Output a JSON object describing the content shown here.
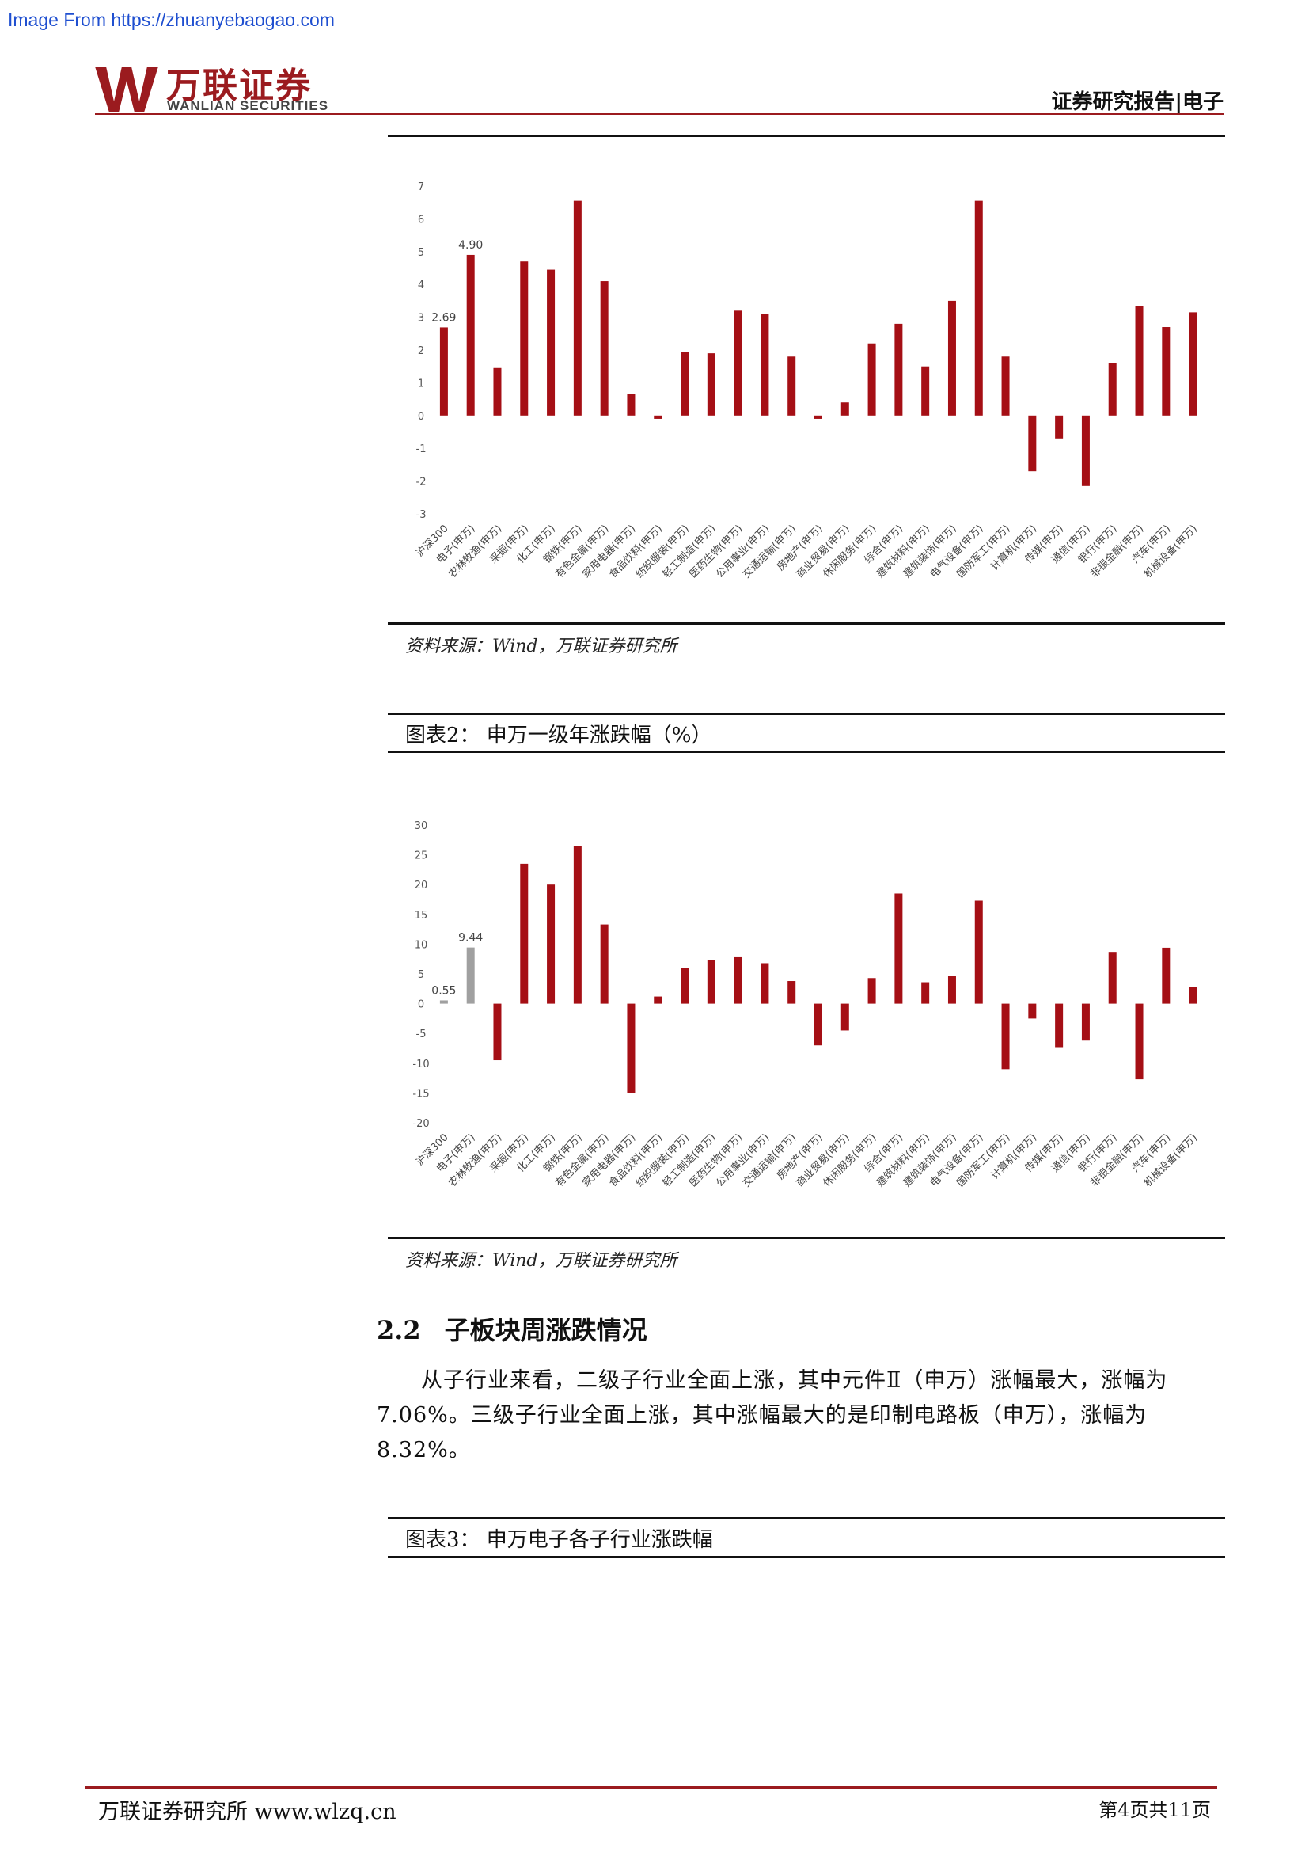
{
  "watermark": "Image From https://zhuanyebaogao.com",
  "header": {
    "logo_cn": "万联证券",
    "logo_en": "WANLIAN SECURITIES",
    "report_label": "证券研究报告|电子"
  },
  "brand_color": "#9b1b1f",
  "figure1": {
    "source": "资料来源：Wind，万联证券研究所"
  },
  "figure2": {
    "title": "图表2：  申万一级年涨跌幅（%）",
    "source": "资料来源：Wind，万联证券研究所"
  },
  "section": {
    "number": "2.2",
    "title": "子板块周涨跌情况",
    "paragraph": "从子行业来看，二级子行业全面上涨，其中元件Ⅱ（申万）涨幅最大，涨幅为7.06%。三级子行业全面上涨，其中涨幅最大的是印制电路板（申万），涨幅为8.32%。"
  },
  "figure3": {
    "title": "图表3：  申万电子各子行业涨跌幅"
  },
  "footer": {
    "left": "万联证券研究所 www.wlzq.cn",
    "right": "第4页共11页"
  },
  "chart_data": [
    {
      "type": "bar",
      "title": "",
      "categories": [
        "沪深300",
        "电子(申万)",
        "农林牧渔(申万)",
        "采掘(申万)",
        "化工(申万)",
        "钢铁(申万)",
        "有色金属(申万)",
        "家用电器(申万)",
        "食品饮料(申万)",
        "纺织服装(申万)",
        "轻工制造(申万)",
        "医药生物(申万)",
        "公用事业(申万)",
        "交通运输(申万)",
        "房地产(申万)",
        "商业贸易(申万)",
        "休闲服务(申万)",
        "综合(申万)",
        "建筑材料(申万)",
        "建筑装饰(申万)",
        "电气设备(申万)",
        "国防军工(申万)",
        "计算机(申万)",
        "传媒(申万)",
        "通信(申万)",
        "银行(申万)",
        "非银金融(申万)",
        "汽车(申万)",
        "机械设备(申万)"
      ],
      "values": [
        2.69,
        4.9,
        1.45,
        4.7,
        4.45,
        6.55,
        4.1,
        0.65,
        -0.1,
        1.95,
        1.9,
        3.2,
        3.1,
        1.8,
        -0.1,
        0.4,
        2.2,
        2.8,
        1.5,
        3.5,
        6.55,
        1.8,
        -1.7,
        -0.7,
        -2.15,
        1.6,
        3.35,
        2.7,
        3.15
      ],
      "data_labels": {
        "0": "2.69",
        "1": "4.90"
      },
      "yticks": [
        "7",
        "6",
        "5",
        "4",
        "3",
        "2",
        "1",
        "0",
        "-1",
        "-2",
        "-3"
      ],
      "ylim": [
        -3,
        7
      ],
      "bar_color": "#a50f15",
      "grid": false
    },
    {
      "type": "bar",
      "title": "",
      "categories": [
        "沪深300",
        "电子(申万)",
        "农林牧渔(申万)",
        "采掘(申万)",
        "化工(申万)",
        "钢铁(申万)",
        "有色金属(申万)",
        "家用电器(申万)",
        "食品饮料(申万)",
        "纺织服装(申万)",
        "轻工制造(申万)",
        "医药生物(申万)",
        "公用事业(申万)",
        "交通运输(申万)",
        "房地产(申万)",
        "商业贸易(申万)",
        "休闲服务(申万)",
        "综合(申万)",
        "建筑材料(申万)",
        "建筑装饰(申万)",
        "电气设备(申万)",
        "国防军工(申万)",
        "计算机(申万)",
        "传媒(申万)",
        "通信(申万)",
        "银行(申万)",
        "非银金融(申万)",
        "汽车(申万)",
        "机械设备(申万)"
      ],
      "values": [
        0.55,
        9.44,
        -9.5,
        23.5,
        20.0,
        26.5,
        13.3,
        -15.0,
        1.2,
        6.0,
        7.3,
        7.8,
        6.8,
        3.8,
        -7.0,
        -4.5,
        4.3,
        18.5,
        3.6,
        4.6,
        17.3,
        -11.0,
        -2.5,
        -7.3,
        -6.2,
        8.7,
        -12.7,
        9.4,
        2.8
      ],
      "data_labels": {
        "0": "0.55",
        "1": "9.44"
      },
      "highlight_color": "#a0a0a0",
      "yticks": [
        "30",
        "25",
        "20",
        "15",
        "10",
        "5",
        "0",
        "-5",
        "-10",
        "-15",
        "-20"
      ],
      "ylim": [
        -20,
        30
      ],
      "bar_color": "#a50f15",
      "grid": false
    }
  ]
}
